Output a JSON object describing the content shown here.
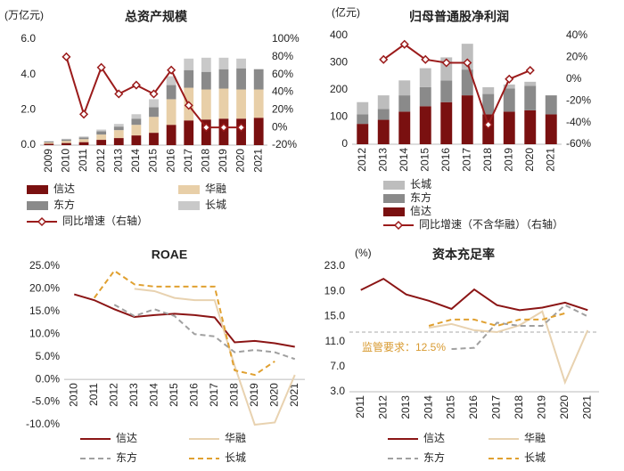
{
  "chart_data": [
    {
      "type": "combo",
      "title": "总资产规模",
      "ylabel": "(万亿元)",
      "categories": [
        "2009",
        "2010",
        "2011",
        "2012",
        "2013",
        "2014",
        "2015",
        "2016",
        "2017",
        "2018",
        "2019",
        "2020",
        "2021"
      ],
      "ylim": [
        0,
        6
      ],
      "yticks": [
        {
          "value": 0,
          "label": "0.0"
        },
        {
          "value": 2,
          "label": "2.0"
        },
        {
          "value": 4,
          "label": "4.0"
        },
        {
          "value": 6,
          "label": "6.0"
        }
      ],
      "y2lim": [
        -20,
        100
      ],
      "y2ticks": [
        {
          "value": -20,
          "label": "-20%"
        },
        {
          "value": 0,
          "label": "0%"
        },
        {
          "value": 20,
          "label": "20%"
        },
        {
          "value": 40,
          "label": "40%"
        },
        {
          "value": 60,
          "label": "60%"
        },
        {
          "value": 80,
          "label": "80%"
        },
        {
          "value": 100,
          "label": "100%"
        }
      ],
      "series": [
        {
          "name": "信达",
          "type": "bar",
          "color": "#7a1010",
          "values": [
            0.08,
            0.12,
            0.17,
            0.3,
            0.4,
            0.55,
            0.7,
            1.15,
            1.4,
            1.45,
            1.5,
            1.5,
            1.55
          ]
        },
        {
          "name": "华融",
          "type": "bar",
          "color": "#e8cfa8",
          "values": [
            0.07,
            0.12,
            0.17,
            0.3,
            0.45,
            0.6,
            0.9,
            1.45,
            1.85,
            1.7,
            1.7,
            1.65,
            1.6
          ]
        },
        {
          "name": "东方",
          "type": "bar",
          "color": "#8a8a8a",
          "values": [
            0.05,
            0.08,
            0.1,
            0.18,
            0.2,
            0.35,
            0.55,
            0.8,
            1.0,
            1.0,
            1.1,
            1.2,
            1.15
          ]
        },
        {
          "name": "长城",
          "type": "bar",
          "color": "#c9c9c9",
          "values": [
            0.03,
            0.04,
            0.05,
            0.1,
            0.15,
            0.25,
            0.45,
            0.5,
            0.65,
            0.8,
            0.65,
            0.55,
            null
          ]
        },
        {
          "name": "同比增速（右轴）",
          "type": "line",
          "axis": "y2",
          "color": "#9b1b1b",
          "markers": "diamond",
          "values": [
            null,
            80,
            15,
            68,
            38,
            48,
            38,
            65,
            25,
            0,
            0,
            0,
            null
          ]
        }
      ]
    },
    {
      "type": "combo",
      "title": "归母普通股净利润",
      "ylabel": "(亿元)",
      "categories": [
        "2012",
        "2013",
        "2014",
        "2015",
        "2016",
        "2017",
        "2018",
        "2019",
        "2020",
        "2021"
      ],
      "ylim": [
        0,
        400
      ],
      "yticks": [
        0,
        100,
        200,
        300,
        400
      ],
      "y2lim": [
        -60,
        40
      ],
      "y2ticks": [
        {
          "value": -60,
          "label": "-60%"
        },
        {
          "value": -40,
          "label": "-40%"
        },
        {
          "value": -20,
          "label": "-20%"
        },
        {
          "value": 0,
          "label": "0%"
        },
        {
          "value": 20,
          "label": "20%"
        },
        {
          "value": 40,
          "label": "40%"
        }
      ],
      "series": [
        {
          "name": "信达",
          "type": "bar",
          "color": "#7a1010",
          "values": [
            75,
            90,
            120,
            140,
            155,
            180,
            110,
            120,
            125,
            110
          ]
        },
        {
          "name": "东方",
          "type": "bar",
          "color": "#8a8a8a",
          "values": [
            35,
            40,
            60,
            70,
            80,
            95,
            75,
            85,
            90,
            70
          ]
        },
        {
          "name": "长城",
          "type": "bar",
          "color": "#bdbdbd",
          "values": [
            45,
            50,
            55,
            70,
            85,
            95,
            25,
            15,
            15,
            null
          ]
        },
        {
          "name": "同比增速（不含华融）（右轴）",
          "type": "line",
          "axis": "y2",
          "color": "#9b1b1b",
          "markers": "diamond",
          "values": [
            null,
            18,
            32,
            18,
            15,
            15,
            -42,
            0,
            8,
            null
          ]
        }
      ]
    },
    {
      "type": "line",
      "title": "ROAE",
      "categories": [
        "2010",
        "2011",
        "2012",
        "2013",
        "2014",
        "2015",
        "2016",
        "2017",
        "2018",
        "2019",
        "2020",
        "2021"
      ],
      "ylim": [
        -10,
        25
      ],
      "yticks": [
        {
          "value": -10,
          "label": "-10.0%"
        },
        {
          "value": -5,
          "label": "-5.0%"
        },
        {
          "value": 0,
          "label": "0.0%"
        },
        {
          "value": 5,
          "label": "5.0%"
        },
        {
          "value": 10,
          "label": "10.0%"
        },
        {
          "value": 15,
          "label": "15.0%"
        },
        {
          "value": 20,
          "label": "20.0%"
        },
        {
          "value": 25,
          "label": "25.0%"
        }
      ],
      "series": [
        {
          "name": "信达",
          "color": "#8b1515",
          "dash": false,
          "values": [
            18.8,
            17.5,
            15.5,
            13.8,
            14.2,
            14.5,
            14.2,
            13.7,
            8.2,
            8.5,
            8.0,
            7.2
          ]
        },
        {
          "name": "华融",
          "color": "#e8d2b0",
          "dash": false,
          "values": [
            null,
            null,
            null,
            20,
            19.5,
            18,
            17.5,
            17.5,
            3,
            -10,
            -9.5,
            1
          ]
        },
        {
          "name": "东方",
          "color": "#a0a0a0",
          "dash": true,
          "values": [
            null,
            null,
            16.5,
            14,
            15.5,
            14,
            10,
            9.5,
            6,
            6.5,
            6,
            4.5
          ]
        },
        {
          "name": "长城",
          "color": "#e0a030",
          "dash": true,
          "values": [
            null,
            18,
            24,
            21,
            20.5,
            20.5,
            20.5,
            20.5,
            2,
            1,
            4,
            null
          ]
        }
      ]
    },
    {
      "type": "line",
      "title": "资本充足率",
      "ylabel": "(%)",
      "categories": [
        "2011",
        "2012",
        "2013",
        "2014",
        "2015",
        "2016",
        "2017",
        "2018",
        "2019",
        "2020",
        "2021"
      ],
      "ylim": [
        3,
        23
      ],
      "yticks": [
        {
          "value": 3,
          "label": "3.0"
        },
        {
          "value": 7,
          "label": "7.0"
        },
        {
          "value": 11,
          "label": "11.0"
        },
        {
          "value": 15,
          "label": "15.0"
        },
        {
          "value": 19,
          "label": "19.0"
        },
        {
          "value": 23,
          "label": "23.0"
        }
      ],
      "reference_line": 12.5,
      "annotation": "监管要求：12.5%",
      "series": [
        {
          "name": "信达",
          "color": "#8b1515",
          "dash": false,
          "values": [
            19.2,
            21,
            18.5,
            17.5,
            16.2,
            19.3,
            16.8,
            16,
            16.4,
            17.2,
            16
          ]
        },
        {
          "name": "华融",
          "color": "#e8d2b0",
          "dash": false,
          "values": [
            null,
            null,
            null,
            13.2,
            13.8,
            12.8,
            12.5,
            13.6,
            15.8,
            4.5,
            12.8
          ]
        },
        {
          "name": "东方",
          "color": "#a0a0a0",
          "dash": true,
          "values": [
            null,
            null,
            null,
            null,
            9.8,
            10,
            14,
            13.5,
            13.5,
            16.8,
            15
          ]
        },
        {
          "name": "长城",
          "color": "#e0a030",
          "dash": true,
          "values": [
            null,
            null,
            null,
            13.5,
            14.5,
            14.5,
            13.5,
            14.5,
            14.5,
            15.5,
            null
          ]
        }
      ]
    }
  ]
}
